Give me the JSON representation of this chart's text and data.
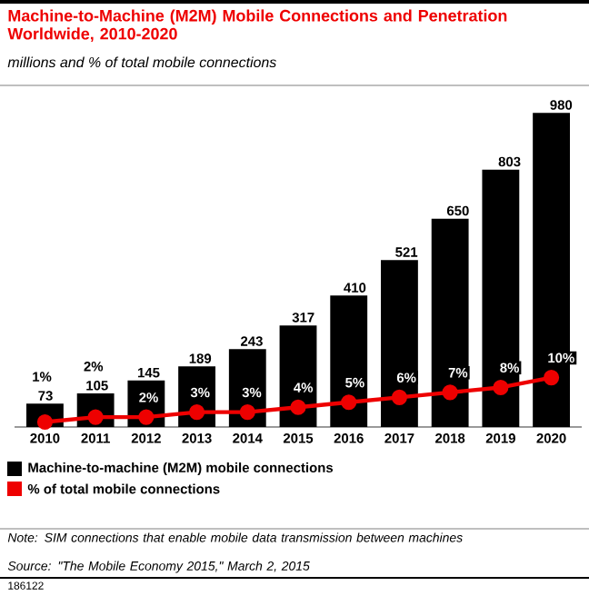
{
  "chart_data": {
    "type": "bar",
    "title": "Machine-to-Machine (M2M) Mobile Connections and Penetration Worldwide, 2010-2020",
    "subtitle": "millions and % of total mobile connections",
    "categories": [
      "2010",
      "2011",
      "2012",
      "2013",
      "2014",
      "2015",
      "2016",
      "2017",
      "2018",
      "2019",
      "2020"
    ],
    "series": [
      {
        "name": "Machine-to-machine (M2M) mobile connections",
        "color": "#000000",
        "values": [
          73,
          105,
          145,
          189,
          243,
          317,
          410,
          521,
          650,
          803,
          980
        ],
        "value_labels": [
          "73",
          "105",
          "145",
          "189",
          "243",
          "317",
          "410",
          "521",
          "650",
          "803",
          "980"
        ]
      },
      {
        "name": "% of total mobile connections",
        "type": "line",
        "axis": "y2",
        "color": "#ee0000",
        "marker": "circle",
        "values": [
          1,
          2,
          2,
          3,
          3,
          4,
          5,
          6,
          7,
          8,
          10
        ],
        "value_labels": [
          "1%",
          "2%",
          "2%",
          "3%",
          "3%",
          "4%",
          "5%",
          "6%",
          "7%",
          "8%",
          "10%"
        ]
      }
    ],
    "tick_labels": "x",
    "legend": "bottom",
    "annotations": [
      "Note: SIM connections that enable mobile data transmission between machines",
      "Source: \"The Mobile Economy 2015,\" March 2, 2015",
      "186122"
    ]
  }
}
